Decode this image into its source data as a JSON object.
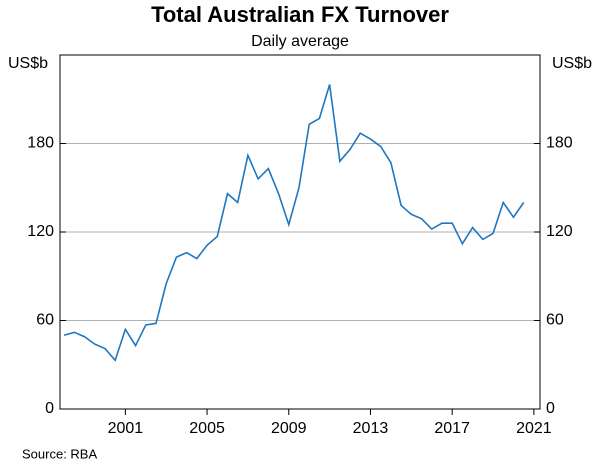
{
  "chart_data": {
    "type": "line",
    "title": "Total Australian FX Turnover",
    "subtitle": "Daily average",
    "ylabel": "US$b",
    "y2label": "US$b",
    "source": "Source:   RBA",
    "x": [
      1998.0,
      1998.5,
      1999.0,
      1999.5,
      2000.0,
      2000.5,
      2001.0,
      2001.5,
      2002.0,
      2002.5,
      2003.0,
      2003.5,
      2004.0,
      2004.5,
      2005.0,
      2005.5,
      2006.0,
      2006.5,
      2007.0,
      2007.5,
      2008.0,
      2008.5,
      2009.0,
      2009.5,
      2010.0,
      2010.5,
      2011.0,
      2011.5,
      2012.0,
      2012.5,
      2013.0,
      2013.5,
      2014.0,
      2014.5,
      2015.0,
      2015.5,
      2016.0,
      2016.5,
      2017.0,
      2017.5,
      2018.0,
      2018.5,
      2019.0,
      2019.5,
      2020.0,
      2020.5
    ],
    "series": [
      {
        "name": "Turnover",
        "color": "#1f77c0",
        "values": [
          50,
          52,
          49,
          44,
          41,
          33,
          54,
          43,
          57,
          58,
          85,
          103,
          106,
          102,
          111,
          117,
          146,
          140,
          172,
          156,
          163,
          146,
          125,
          150,
          193,
          197,
          220,
          168,
          176,
          187,
          183,
          178,
          167,
          138,
          132,
          129,
          122,
          126,
          126,
          112,
          123,
          115,
          119,
          140,
          130,
          140
        ]
      }
    ],
    "xlim": [
      1997.8,
      2021.3
    ],
    "xticks": [
      2001,
      2005,
      2009,
      2013,
      2017,
      2021
    ],
    "ylim": [
      0,
      240
    ],
    "yticks": [
      0,
      60,
      120,
      180
    ],
    "grid": true
  }
}
